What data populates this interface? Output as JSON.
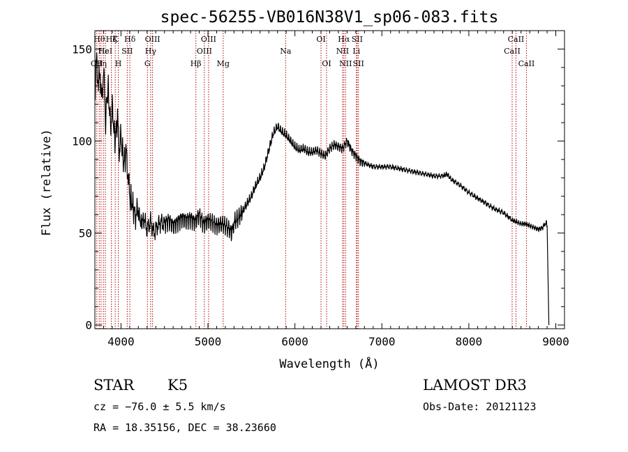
{
  "chart_data": {
    "type": "line",
    "title": "spec-56255-VB016N38V1_sp06-083.fits",
    "xlabel": "Wavelength (Å)",
    "ylabel": "Flux (relative)",
    "xlim": [
      3700,
      9100
    ],
    "ylim": [
      -2,
      160
    ],
    "xticks": [
      4000,
      5000,
      6000,
      7000,
      8000,
      9000
    ],
    "yticks": [
      0,
      50,
      100,
      150
    ],
    "grid": false,
    "series": [
      {
        "x": [
          3700,
          3720,
          3740,
          3760,
          3780,
          3800,
          3820,
          3850,
          3880,
          3900,
          3930,
          3960,
          3980,
          4000,
          4030,
          4060,
          4100,
          4130,
          4160,
          4200,
          4230,
          4260,
          4300,
          4340,
          4380,
          4420,
          4460,
          4500,
          4550,
          4600,
          4650,
          4700,
          4750,
          4800,
          4850,
          4900,
          4950,
          5000,
          5050,
          5100,
          5150,
          5200,
          5250,
          5280,
          5300,
          5350,
          5400,
          5450,
          5500,
          5550,
          5600,
          5650,
          5700,
          5750,
          5800,
          5850,
          5900,
          5950,
          6000,
          6050,
          6100,
          6150,
          6200,
          6250,
          6300,
          6350,
          6400,
          6450,
          6500,
          6550,
          6600,
          6650,
          6700,
          6750,
          6800,
          6900,
          7000,
          7100,
          7200,
          7300,
          7400,
          7500,
          7600,
          7700,
          7750,
          7800,
          7900,
          8000,
          8100,
          8200,
          8300,
          8400,
          8500,
          8550,
          8600,
          8650,
          8700,
          8750,
          8800,
          8850,
          8890,
          8900,
          8920
        ],
        "y": [
          125,
          145,
          130,
          138,
          120,
          142,
          110,
          130,
          108,
          118,
          100,
          112,
          95,
          102,
          88,
          94,
          70,
          66,
          60,
          62,
          55,
          58,
          52,
          56,
          50,
          54,
          56,
          55,
          57,
          54,
          56,
          58,
          57,
          58,
          56,
          60,
          55,
          57,
          56,
          54,
          55,
          54,
          52,
          50,
          56,
          58,
          62,
          66,
          70,
          76,
          80,
          86,
          95,
          104,
          108,
          105,
          103,
          100,
          97,
          95,
          96,
          94,
          94,
          95,
          93,
          92,
          96,
          98,
          97,
          96,
          100,
          95,
          92,
          89,
          88,
          86,
          86,
          86,
          85,
          84,
          83,
          82,
          81,
          81,
          82,
          79,
          76,
          72,
          69,
          66,
          63,
          61,
          57,
          56,
          55,
          55,
          54,
          53,
          52,
          53,
          56,
          54,
          0
        ]
      }
    ],
    "lines": [
      {
        "x": 3722,
        "label": "OII",
        "row": 2
      },
      {
        "x": 3750,
        "label": "Hθ",
        "row": 0
      },
      {
        "x": 3771,
        "label": "Hη",
        "row": 2
      },
      {
        "x": 3798,
        "label": "Hε",
        "row": 1
      },
      {
        "x": 3820,
        "label": "HeI",
        "row": 1
      },
      {
        "x": 3889,
        "label": "Hζ",
        "row": 0
      },
      {
        "x": 3934,
        "label": "K",
        "row": 0
      },
      {
        "x": 3969,
        "label": "H",
        "row": 2
      },
      {
        "x": 4072,
        "label": "SII",
        "row": 1
      },
      {
        "x": 4102,
        "label": "Hδ",
        "row": 0
      },
      {
        "x": 4304,
        "label": "G",
        "row": 2
      },
      {
        "x": 4341,
        "label": "Hγ",
        "row": 1
      },
      {
        "x": 4363,
        "label": "OIII",
        "row": 0
      },
      {
        "x": 4861,
        "label": "Hβ",
        "row": 2
      },
      {
        "x": 4959,
        "label": "OIII",
        "row": 1
      },
      {
        "x": 5007,
        "label": "OIII",
        "row": 0
      },
      {
        "x": 5175,
        "label": "Mg",
        "row": 2
      },
      {
        "x": 5893,
        "label": "Na",
        "row": 1
      },
      {
        "x": 6300,
        "label": "OI",
        "row": 0
      },
      {
        "x": 6364,
        "label": "OI",
        "row": 2
      },
      {
        "x": 6548,
        "label": "NII",
        "row": 1
      },
      {
        "x": 6563,
        "label": "Hα",
        "row": 0
      },
      {
        "x": 6583,
        "label": "NII",
        "row": 2
      },
      {
        "x": 6707,
        "label": "Li",
        "row": 1
      },
      {
        "x": 6716,
        "label": "SII",
        "row": 0
      },
      {
        "x": 6731,
        "label": "SII",
        "row": 2
      },
      {
        "x": 8498,
        "label": "CaII",
        "row": 1
      },
      {
        "x": 8542,
        "label": "CaII",
        "row": 0
      },
      {
        "x": 8662,
        "label": "CaII",
        "row": 2
      }
    ]
  },
  "info": {
    "class": "STAR",
    "subclass": "K5",
    "cz": "cz = −76.0 ± 5.5 km/s",
    "radec": "RA =  18.35156, DEC =  38.23660",
    "survey": "LAMOST DR3",
    "obsdate": "Obs-Date: 20121123"
  }
}
